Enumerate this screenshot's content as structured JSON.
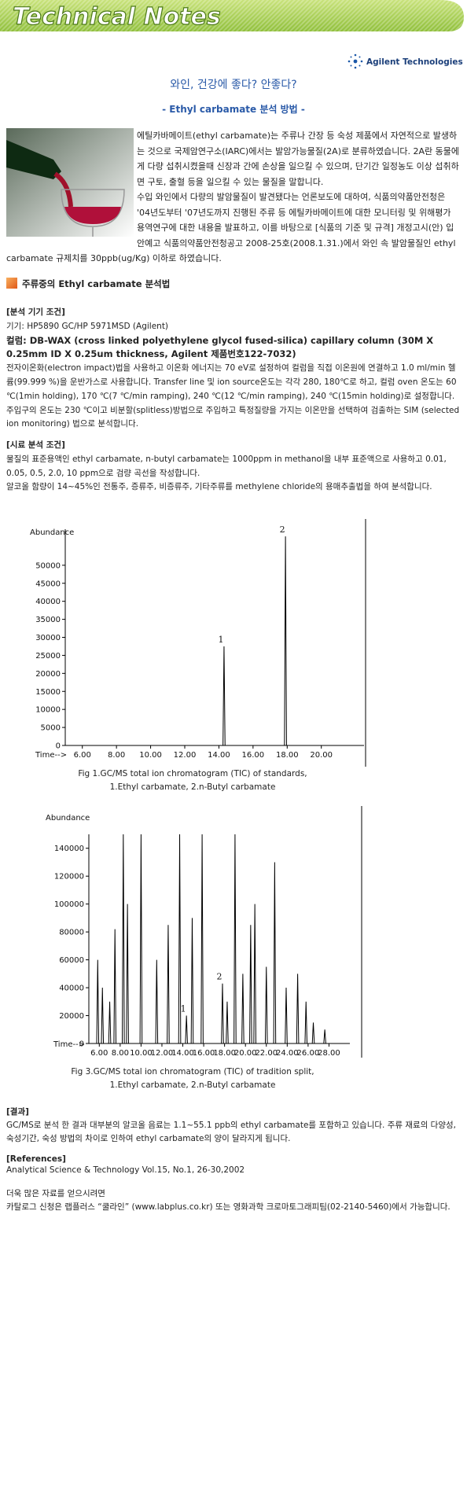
{
  "header": {
    "title": "Technical Notes",
    "logo": "Agilent Technologies"
  },
  "article": {
    "title": "와인, 건강에 좋다? 안좋다?",
    "subtitle": "- Ethyl carbamate 분석 방법 -",
    "intro": [
      "에틸카바메이트(ethyl carbamate)는 주류나 간장 등 숙성 제품에서 자연적으로 발생하는 것으로 국제암연구소(IARC)에서는 발암가능물질(2A)로 분류하였습니다. 2A란 동물에게 다량 섭취시켰을때 신장과 간에 손상을 일으킬 수 있으며, 단기간 일정농도 이상 섭취하면 구토, 출혈 등을 일으킬 수 있는 물질을 말합니다.",
      "수입 와인에서 다량의 발암물질이 발견됐다는 언론보도에 대하여, 식품의약품안전청은 '04년도부터 '07년도까지 진행된 주류 등 에틸카바메이트에 대한 모니터링 및 위해평가 용역연구에 대한 내용을 발표하고, 이를 바탕으로 [식품의 기준 및 규격] 개정고시(안) 입안예고 식품의약품안전청공고 2008-25호(2008.1.31.)에서 와인 속 발암물질인 ethyl carbamate 규제치를 30ppb(ug/Kg) 이하로 하였습니다."
    ],
    "section_title": "주류중의 Ethyl carbamate 분석법",
    "instrument": {
      "heading": "[분석 기기 조건]",
      "device": "기기: HP5890 GC/HP 5971MSD (Agilent)",
      "column": "컬럼: DB-WAX (cross linked polyethylene glycol fused-silica) capillary column (30M X 0.25mm ID X 0.25um thickness, Agilent 제품번호122-7032)",
      "method": "전자이온화(electron impact)법을 사용하고 이온화 에너지는 70 eV로 설정하여 컬럼을 직접 이온원에 연결하고 1.0 ml/min 헬륨(99.999 %)을 운반가스로 사용합니다. Transfer line 및 ion source온도는 각각 280, 180℃로 하고, 컬럼 oven 온도는 60 ℃(1min holding), 170 ℃(7 ℃/min ramping), 240 ℃(12 ℃/min ramping), 240 ℃(15min holding)로 설정합니다. 주입구의 온도는 230 ℃이고 비분할(splitless)방법으로 주입하고 특정질량을 가지는 이온만을 선택하여 검출하는 SIM (selected ion monitoring) 법으로 분석합니다."
    },
    "sample": {
      "heading": "[시료 분석 조건]",
      "paragraphs": [
        "물질의 표준용액인 ethyl carbamate, n-butyl carbamate는 1000ppm in methanol을 내부 표준액으로 사용하고 0.01, 0.05, 0.5, 2.0, 10 ppm으로 검량 곡선을 작성합니다.",
        "알코올 함량이 14~45%인 전통주, 증류주, 비증류주, 기타주류를 methylene chloride의 용매추출법을 하여 분석합니다."
      ]
    },
    "results": {
      "heading": "[결과]",
      "text": "GC/MS로 분석 한 결과 대부분의 알코올 음료는 1.1~55.1 ppb의 ethyl carbamate를 포함하고 있습니다. 주류 재료의 다양성, 숙성기간, 숙성 방법의 차이로 인하여 ethyl carbamate의 양이 달라지게 됩니다."
    },
    "references": {
      "heading": "[References]",
      "text": "Analytical Science & Technology Vol.15, No.1, 26-30,2002"
    },
    "contact": [
      "더욱 많은 자료를 얻으시려면",
      "카탈로그 신청은 랩플러스 “쿨라인” (www.labplus.co.kr) 또는 영화과학 크로마토그래피팀(02-2140-5460)에서 가능합니다."
    ]
  },
  "chart_data": [
    {
      "type": "chromatogram",
      "y_label": "Abundance",
      "x_label": "Time-->",
      "color": "#000000",
      "xlim": [
        5,
        22.5
      ],
      "ylim": [
        0,
        60000
      ],
      "xticks": [
        {
          "value": 6,
          "label": "6.00"
        },
        {
          "value": 8,
          "label": "8.00"
        },
        {
          "value": 10,
          "label": "10.00"
        },
        {
          "value": 12,
          "label": "12.00"
        },
        {
          "value": 14,
          "label": "14.00"
        },
        {
          "value": 16,
          "label": "16.00"
        },
        {
          "value": 18,
          "label": "18.00"
        },
        {
          "value": 20,
          "label": "20.00"
        }
      ],
      "yticks": [
        0,
        5000,
        10000,
        15000,
        20000,
        25000,
        30000,
        35000,
        40000,
        45000,
        50000
      ],
      "peaks": {
        "x": [
          14.3,
          17.9
        ],
        "values": [
          27500,
          58000
        ],
        "labels": [
          "1",
          "2"
        ]
      },
      "caption": [
        "Fig 1.GC/MS total ion chromatogram (TIC) of standards,",
        "1.Ethyl carbamate,  2.n-Butyl carbamate"
      ]
    },
    {
      "type": "chromatogram",
      "y_label": "Abundance",
      "x_label": "Time-->",
      "color": "#000000",
      "xlim": [
        5,
        30
      ],
      "ylim": [
        0,
        150000
      ],
      "xticks": [
        {
          "value": 6,
          "label": "6.00"
        },
        {
          "value": 8,
          "label": "8.00"
        },
        {
          "value": 10,
          "label": "10.00"
        },
        {
          "value": 12,
          "label": "12.00"
        },
        {
          "value": 14,
          "label": "14.00"
        },
        {
          "value": 16,
          "label": "16.00"
        },
        {
          "value": 18,
          "label": "18.00"
        },
        {
          "value": 20,
          "label": "20.00"
        },
        {
          "value": 22,
          "label": "22.00"
        },
        {
          "value": 24,
          "label": "24.00"
        },
        {
          "value": 26,
          "label": "26.00"
        },
        {
          "value": 28,
          "label": "28.00"
        }
      ],
      "yticks": [
        0,
        20000,
        40000,
        60000,
        80000,
        100000,
        120000,
        140000
      ],
      "peaks": {
        "x": [
          5.85,
          6.3,
          7.0,
          7.5,
          8.3,
          8.7,
          10.0,
          11.5,
          12.6,
          13.7,
          14.35,
          14.9,
          15.85,
          17.8,
          18.25,
          19.0,
          19.75,
          20.5,
          20.9,
          22.0,
          22.8,
          23.9,
          25.0,
          25.8,
          26.5,
          27.6
        ],
        "values": [
          60000,
          40000,
          30000,
          82000,
          150000,
          100000,
          150000,
          60000,
          85000,
          150000,
          20000,
          90000,
          150000,
          43000,
          30000,
          150000,
          50000,
          85000,
          100000,
          55000,
          130000,
          40000,
          50000,
          30000,
          15000,
          10000
        ],
        "labels": [
          null,
          null,
          null,
          null,
          null,
          null,
          null,
          null,
          null,
          null,
          "1",
          null,
          null,
          "2",
          null,
          null,
          null,
          null,
          null,
          null,
          null,
          null,
          null,
          null,
          null,
          null
        ]
      },
      "caption": [
        "Fig 3.GC/MS total ion chromatogram (TIC) of tradition split,",
        "1.Ethyl carbamate, 2.n-Butyl carbamate"
      ]
    }
  ]
}
